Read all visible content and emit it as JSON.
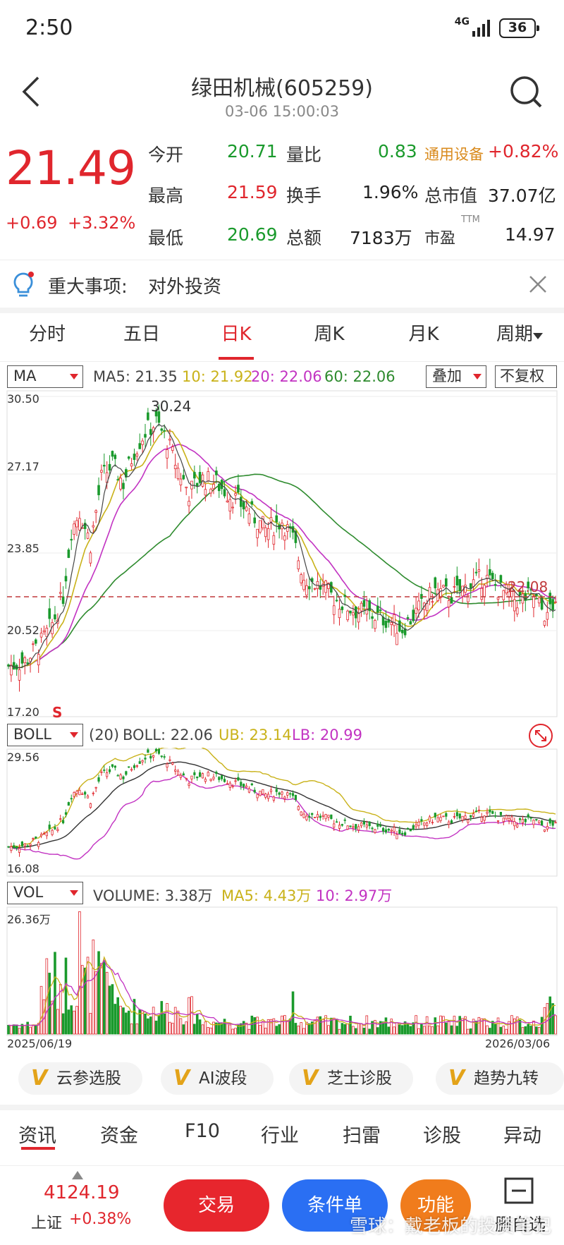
{
  "status": {
    "time": "2:50",
    "network": "4G",
    "battery": "36"
  },
  "header": {
    "title": "绿田机械(605259)",
    "datetime": "03-06 15:00:03"
  },
  "quote": {
    "price": "21.49",
    "change": "+0.69",
    "change_pct": "+3.32%",
    "open_label": "今开",
    "open": "20.71",
    "vol_ratio_label": "量比",
    "vol_ratio": "0.83",
    "sector": "通用设备",
    "sector_pct": "+0.82%",
    "high_label": "最高",
    "high": "21.59",
    "turnover_label": "换手",
    "turnover": "1.96%",
    "mcap_label": "总市值",
    "mcap": "37.07亿",
    "low_label": "最低",
    "low": "20.69",
    "amount_label": "总额",
    "amount": "7183万",
    "pe_label": "市盈",
    "pe_sup": "TTM",
    "pe": "14.97"
  },
  "event": {
    "label": "重大事项:",
    "value": "对外投资"
  },
  "tabs": [
    "分时",
    "五日",
    "日K",
    "周K",
    "月K",
    "周期"
  ],
  "active_tab": 2,
  "ma_panel": {
    "selector": "MA",
    "ma5": "MA5: 21.35",
    "ma10": "10: 21.92",
    "ma20": "20: 22.06",
    "ma60": "60: 22.06",
    "overlay": "叠加",
    "adjust": "不复权",
    "y_ticks": [
      "30.50",
      "27.17",
      "23.85",
      "20.52",
      "17.20"
    ],
    "high_mark": "30.24",
    "last_mark": "22.08",
    "s_mark": "S"
  },
  "boll_panel": {
    "selector": "BOLL",
    "period": "(20)",
    "boll": "BOLL: 22.06",
    "ub": "UB: 23.14",
    "lb": "LB: 20.99",
    "y_top": "29.56",
    "y_bottom": "16.08"
  },
  "vol_panel": {
    "selector": "VOL",
    "volume": "VOLUME: 3.38万",
    "ma5": "MA5: 4.43万",
    "ma10": "10: 2.97万",
    "y_top": "26.36万",
    "date_start": "2025/06/19",
    "date_end": "2026/03/06"
  },
  "chips": [
    "云参选股",
    "AI波段",
    "芝士诊股",
    "趋势九转"
  ],
  "bottom_tabs": [
    "资讯",
    "资金",
    "F10",
    "行业",
    "扫雷",
    "诊股",
    "异动"
  ],
  "footer": {
    "index_value": "4124.19",
    "index_name": "上证",
    "index_pct": "+0.38%",
    "trade": "交易",
    "condition": "条件单",
    "function": "功能",
    "remove": "删自选"
  },
  "watermark": "雪球：戴老板的投资笔记",
  "colors": {
    "up": "#e0262d",
    "down": "#1a9a2c",
    "ma5": "#444444",
    "ma10": "#c9b21a",
    "ma20": "#c233c2",
    "ma60": "#2e8b2e"
  }
}
